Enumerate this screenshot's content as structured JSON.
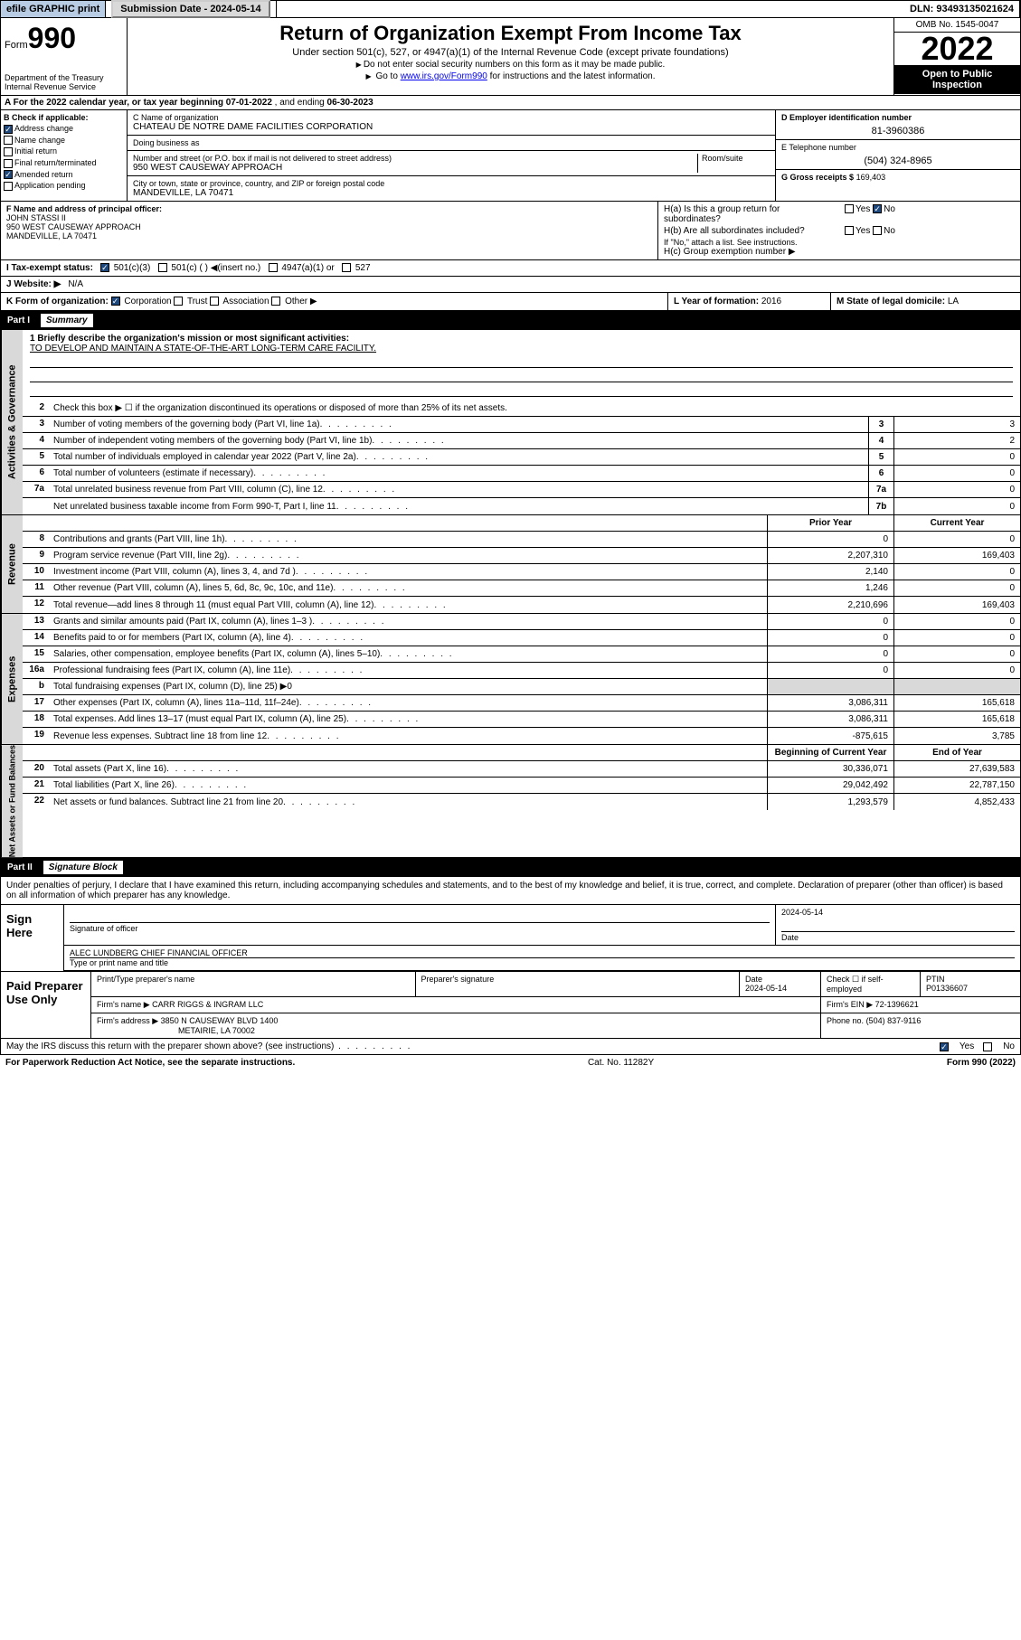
{
  "colors": {
    "header_blue": "#b8cce4",
    "black": "#000000",
    "gray": "#d9d9d9",
    "check_blue": "#1f497d",
    "link": "#0000ee"
  },
  "topbar": {
    "efile": "efile GRAPHIC print",
    "submission": "Submission Date - 2024-05-14",
    "dln": "DLN: 93493135021624"
  },
  "header": {
    "form_prefix": "Form",
    "form_no": "990",
    "title": "Return of Organization Exempt From Income Tax",
    "subtitle": "Under section 501(c), 527, or 4947(a)(1) of the Internal Revenue Code (except private foundations)",
    "note1": "Do not enter social security numbers on this form as it may be made public.",
    "note2_pre": "Go to ",
    "note2_link": "www.irs.gov/Form990",
    "note2_post": " for instructions and the latest information.",
    "dept": "Department of the Treasury",
    "irs": "Internal Revenue Service",
    "omb": "OMB No. 1545-0047",
    "year": "2022",
    "inspect1": "Open to Public",
    "inspect2": "Inspection"
  },
  "row_a": {
    "label": "A For the 2022 calendar year, or tax year beginning",
    "begin": "07-01-2022",
    "mid": ", and ending",
    "end": "06-30-2023"
  },
  "section_b": {
    "label": "B Check if applicable:",
    "items": [
      {
        "text": "Address change",
        "checked": true
      },
      {
        "text": "Name change",
        "checked": false
      },
      {
        "text": "Initial return",
        "checked": false
      },
      {
        "text": "Final return/terminated",
        "checked": false
      },
      {
        "text": "Amended return",
        "checked": true
      },
      {
        "text": "Application pending",
        "checked": false
      }
    ]
  },
  "section_c": {
    "name_label": "C Name of organization",
    "name": "CHATEAU DE NOTRE DAME FACILITIES CORPORATION",
    "dba_label": "Doing business as",
    "dba": "",
    "street_label": "Number and street (or P.O. box if mail is not delivered to street address)",
    "room_label": "Room/suite",
    "street": "950 WEST CAUSEWAY APPROACH",
    "city_label": "City or town, state or province, country, and ZIP or foreign postal code",
    "city": "MANDEVILLE, LA  70471"
  },
  "section_d": {
    "label": "D Employer identification number",
    "value": "81-3960386"
  },
  "section_e": {
    "label": "E Telephone number",
    "value": "(504) 324-8965"
  },
  "section_g": {
    "label": "G Gross receipts $",
    "value": "169,403"
  },
  "section_f": {
    "label": "F Name and address of principal officer:",
    "name": "JOHN STASSI II",
    "addr1": "950 WEST CAUSEWAY APPROACH",
    "addr2": "MANDEVILLE, LA  70471"
  },
  "section_h": {
    "a_label": "H(a)  Is this a group return for",
    "a_label2": "subordinates?",
    "a_yes": "Yes",
    "a_no": "No",
    "a_checked": "no",
    "b_label": "H(b)  Are all subordinates included?",
    "b_yes": "Yes",
    "b_no": "No",
    "b_note": "If \"No,\" attach a list. See instructions.",
    "c_label": "H(c)  Group exemption number ▶"
  },
  "row_i": {
    "label": "I  Tax-exempt status:",
    "opts": [
      "501(c)(3)",
      "501(c) (  ) ◀(insert no.)",
      "4947(a)(1) or",
      "527"
    ],
    "checked_index": 0
  },
  "row_j": {
    "label": "J  Website: ▶",
    "value": "N/A"
  },
  "row_k": {
    "label": "K Form of organization:",
    "opts": [
      "Corporation",
      "Trust",
      "Association",
      "Other ▶"
    ],
    "checked_index": 0,
    "l_label": "L Year of formation:",
    "l_value": "2016",
    "m_label": "M State of legal domicile:",
    "m_value": "LA"
  },
  "part1": {
    "partno": "Part I",
    "title": "Summary"
  },
  "summary": {
    "mission_label": "1  Briefly describe the organization's mission or most significant activities:",
    "mission": "TO DEVELOP AND MAINTAIN A STATE-OF-THE-ART LONG-TERM CARE FACILITY.",
    "line2": "Check this box ▶ ☐  if the organization discontinued its operations or disposed of more than 25% of its net assets.",
    "rows_gov": [
      {
        "n": "3",
        "desc": "Number of voting members of the governing body (Part VI, line 1a)",
        "box": "3",
        "val": "3"
      },
      {
        "n": "4",
        "desc": "Number of independent voting members of the governing body (Part VI, line 1b)",
        "box": "4",
        "val": "2"
      },
      {
        "n": "5",
        "desc": "Total number of individuals employed in calendar year 2022 (Part V, line 2a)",
        "box": "5",
        "val": "0"
      },
      {
        "n": "6",
        "desc": "Total number of volunteers (estimate if necessary)",
        "box": "6",
        "val": "0"
      },
      {
        "n": "7a",
        "desc": "Total unrelated business revenue from Part VIII, column (C), line 12",
        "box": "7a",
        "val": "0"
      },
      {
        "n": "",
        "desc": "Net unrelated business taxable income from Form 990-T, Part I, line 11",
        "box": "7b",
        "val": "0"
      }
    ],
    "col_hdr": {
      "prior": "Prior Year",
      "current": "Current Year"
    },
    "rows_rev": [
      {
        "n": "8",
        "desc": "Contributions and grants (Part VIII, line 1h)",
        "prior": "0",
        "current": "0"
      },
      {
        "n": "9",
        "desc": "Program service revenue (Part VIII, line 2g)",
        "prior": "2,207,310",
        "current": "169,403"
      },
      {
        "n": "10",
        "desc": "Investment income (Part VIII, column (A), lines 3, 4, and 7d )",
        "prior": "2,140",
        "current": "0"
      },
      {
        "n": "11",
        "desc": "Other revenue (Part VIII, column (A), lines 5, 6d, 8c, 9c, 10c, and 11e)",
        "prior": "1,246",
        "current": "0"
      },
      {
        "n": "12",
        "desc": "Total revenue—add lines 8 through 11 (must equal Part VIII, column (A), line 12)",
        "prior": "2,210,696",
        "current": "169,403"
      }
    ],
    "rows_exp": [
      {
        "n": "13",
        "desc": "Grants and similar amounts paid (Part IX, column (A), lines 1–3 )",
        "prior": "0",
        "current": "0"
      },
      {
        "n": "14",
        "desc": "Benefits paid to or for members (Part IX, column (A), line 4)",
        "prior": "0",
        "current": "0"
      },
      {
        "n": "15",
        "desc": "Salaries, other compensation, employee benefits (Part IX, column (A), lines 5–10)",
        "prior": "0",
        "current": "0"
      },
      {
        "n": "16a",
        "desc": "Professional fundraising fees (Part IX, column (A), line 11e)",
        "prior": "0",
        "current": "0"
      },
      {
        "n": "b",
        "desc": "Total fundraising expenses (Part IX, column (D), line 25) ▶0",
        "prior": "",
        "current": "",
        "shade": true
      },
      {
        "n": "17",
        "desc": "Other expenses (Part IX, column (A), lines 11a–11d, 11f–24e)",
        "prior": "3,086,311",
        "current": "165,618"
      },
      {
        "n": "18",
        "desc": "Total expenses. Add lines 13–17 (must equal Part IX, column (A), line 25)",
        "prior": "3,086,311",
        "current": "165,618"
      },
      {
        "n": "19",
        "desc": "Revenue less expenses. Subtract line 18 from line 12",
        "prior": "-875,615",
        "current": "3,785"
      }
    ],
    "col_hdr2": {
      "begin": "Beginning of Current Year",
      "end": "End of Year"
    },
    "rows_net": [
      {
        "n": "20",
        "desc": "Total assets (Part X, line 16)",
        "prior": "30,336,071",
        "current": "27,639,583"
      },
      {
        "n": "21",
        "desc": "Total liabilities (Part X, line 26)",
        "prior": "29,042,492",
        "current": "22,787,150"
      },
      {
        "n": "22",
        "desc": "Net assets or fund balances. Subtract line 21 from line 20",
        "prior": "1,293,579",
        "current": "4,852,433"
      }
    ]
  },
  "tabs": {
    "gov": "Activities & Governance",
    "rev": "Revenue",
    "exp": "Expenses",
    "net": "Net Assets or Fund Balances"
  },
  "part2": {
    "partno": "Part II",
    "title": "Signature Block"
  },
  "penalties": "Under penalties of perjury, I declare that I have examined this return, including accompanying schedules and statements, and to the best of my knowledge and belief, it is true, correct, and complete. Declaration of preparer (other than officer) is based on all information of which preparer has any knowledge.",
  "sign": {
    "here": "Sign Here",
    "sig_label": "Signature of officer",
    "date_label": "Date",
    "date": "2024-05-14",
    "name": "ALEC LUNDBERG  CHIEF FINANCIAL OFFICER",
    "name_label": "Type or print name and title"
  },
  "paid": {
    "title": "Paid Preparer Use Only",
    "h1": "Print/Type preparer's name",
    "h2": "Preparer's signature",
    "h3": "Date",
    "h4": "Check ☐ if self-employed",
    "h5": "PTIN",
    "date": "2024-05-14",
    "ptin": "P01336607",
    "firm_label": "Firm's name  ▶",
    "firm": "CARR RIGGS & INGRAM LLC",
    "ein_label": "Firm's EIN ▶",
    "ein": "72-1396621",
    "addr_label": "Firm's address ▶",
    "addr1": "3850 N CAUSEWAY BLVD 1400",
    "addr2": "METAIRIE, LA  70002",
    "phone_label": "Phone no.",
    "phone": "(504) 837-9116"
  },
  "footer": {
    "discuss": "May the IRS discuss this return with the preparer shown above? (see instructions)",
    "yes": "Yes",
    "no": "No",
    "yes_checked": true,
    "pra": "For Paperwork Reduction Act Notice, see the separate instructions.",
    "cat": "Cat. No. 11282Y",
    "form": "Form 990 (2022)"
  }
}
